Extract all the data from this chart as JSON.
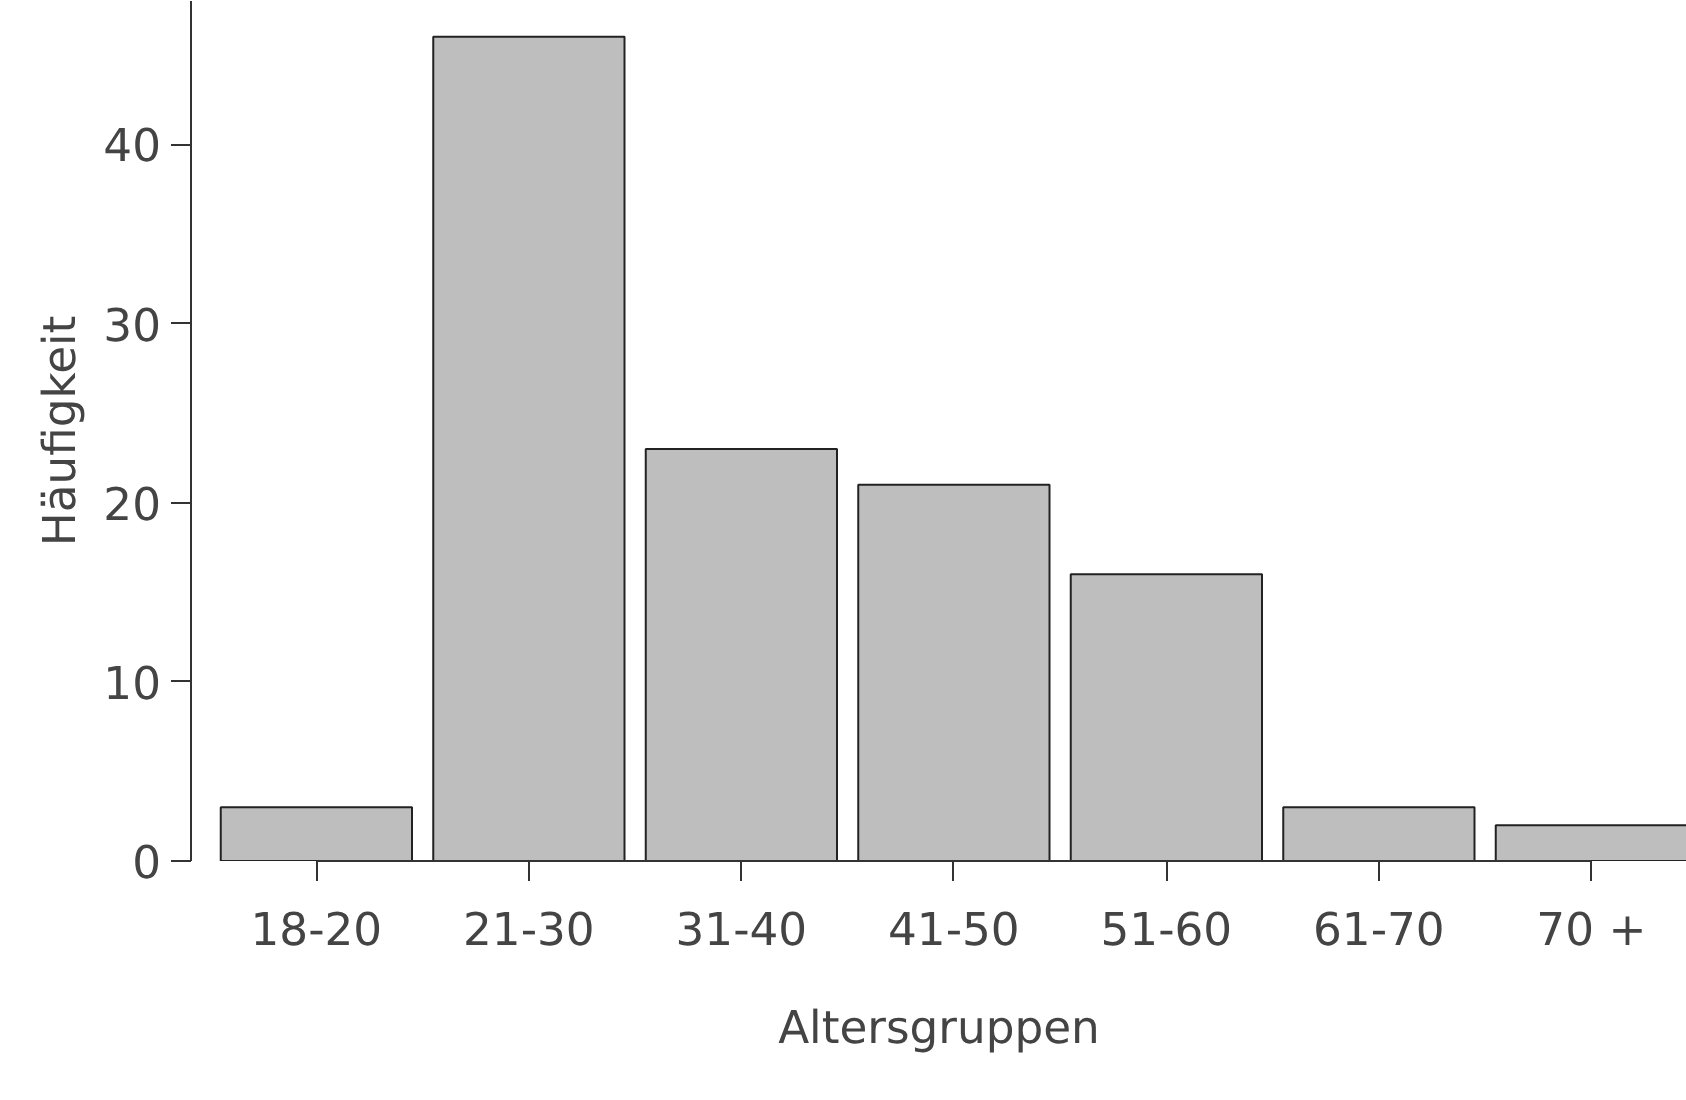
{
  "chart_data": {
    "type": "bar",
    "categories": [
      "18-20",
      "21-30",
      "31-40",
      "41-50",
      "51-60",
      "61-70",
      "70 +"
    ],
    "values": [
      3,
      46,
      23,
      21,
      16,
      3,
      2
    ],
    "color": "#bebebe",
    "xlabel": "Altersgruppen",
    "ylabel": "Häufigkeit",
    "ylim": [
      0,
      48
    ],
    "yticks": [
      0,
      10,
      20,
      30,
      40
    ],
    "grid": false
  }
}
